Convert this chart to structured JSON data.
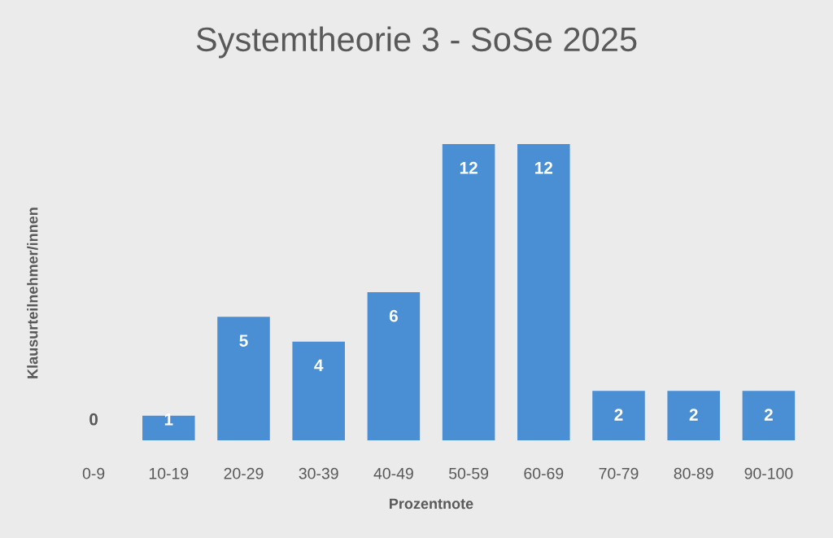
{
  "chart_data": {
    "type": "bar",
    "title": "Systemtheorie 3 - SoSe 2025",
    "xlabel": "Prozentnote",
    "ylabel": "Klausurteilnehmer/innen",
    "categories": [
      "0-9",
      "10-19",
      "20-29",
      "30-39",
      "40-49",
      "50-59",
      "60-69",
      "70-79",
      "80-89",
      "90-100"
    ],
    "values": [
      0,
      1,
      5,
      4,
      6,
      12,
      12,
      2,
      2,
      2
    ],
    "color": "#4a8ed3",
    "data_labels": true,
    "tick_labels": "x",
    "grid": false
  }
}
